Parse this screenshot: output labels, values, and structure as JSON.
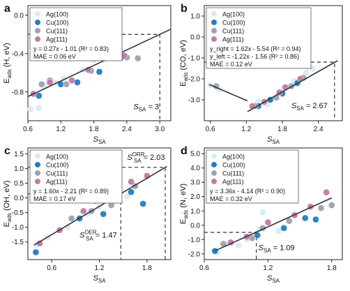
{
  "colors": {
    "Ag(100)": "#d6ecf7",
    "Cu(100)": "#1f7fc4",
    "Cu(111)": "#9aa3ad",
    "Ag(111)": "#c27aa6"
  },
  "chart_data": [
    {
      "type": "scatter",
      "letter": "a",
      "ylabel": "E",
      "ylabel_sub": "ads",
      "ylabel_rest": " (H, eV)",
      "xlabel": "S",
      "xlabel_sub": "SA",
      "xlim": [
        0.6,
        3.2
      ],
      "ylim": [
        -1.1,
        0.1
      ],
      "xticks": [
        "0.6",
        "1.2",
        "1.8",
        "2.4",
        "3.0"
      ],
      "xtick_values": [
        0.6,
        1.2,
        1.8,
        2.4,
        3.0
      ],
      "yticks": [
        "-0.8",
        "-0.4",
        "0.0"
      ],
      "ytick_values": [
        -0.8,
        -0.4,
        0.0
      ],
      "legend": [
        "Ag(100)",
        "Cu(100)",
        "Cu(111)",
        "Ag(111)"
      ],
      "equations": [
        "y = 0.27x - 1.01 (R² = 0.83)",
        "MAE = 0.06 eV"
      ],
      "fits": [
        {
          "slope": 0.27,
          "intercept": -1.01,
          "x0": 0.6,
          "x1": 3.2
        }
      ],
      "guides": [
        {
          "x": 3.0,
          "y": -0.2
        }
      ],
      "annotations": [
        {
          "main": "S",
          "sub": "SA",
          "rest": " = 3",
          "x": 2.52,
          "y": -0.98
        }
      ],
      "series": [
        {
          "name": "Ag(100)",
          "points": [
            [
              0.65,
              -0.98
            ],
            [
              0.8,
              -0.97
            ],
            [
              0.9,
              -0.73
            ],
            [
              1.1,
              -0.7
            ],
            [
              1.25,
              -0.66
            ],
            [
              1.6,
              -0.57
            ],
            [
              1.8,
              -0.47
            ],
            [
              2.1,
              -0.3
            ],
            [
              2.25,
              -0.35
            ]
          ]
        },
        {
          "name": "Cu(100)",
          "points": [
            [
              0.8,
              -0.84
            ],
            [
              1.2,
              -0.72
            ],
            [
              1.5,
              -0.7
            ],
            [
              1.9,
              -0.59
            ],
            [
              2.3,
              -0.44
            ]
          ]
        },
        {
          "name": "Cu(111)",
          "points": [
            [
              0.85,
              -0.72
            ],
            [
              1.0,
              -0.68
            ],
            [
              1.3,
              -0.72
            ],
            [
              1.75,
              -0.58
            ],
            [
              2.05,
              -0.42
            ],
            [
              2.4,
              -0.44
            ],
            [
              2.6,
              -0.45
            ]
          ]
        },
        {
          "name": "Ag(111)",
          "points": [
            [
              0.7,
              -0.82
            ],
            [
              1.0,
              -0.7
            ],
            [
              1.4,
              -0.68
            ],
            [
              1.7,
              -0.57
            ],
            [
              2.0,
              -0.45
            ],
            [
              2.2,
              -0.38
            ],
            [
              2.35,
              -0.42
            ]
          ]
        }
      ]
    },
    {
      "type": "scatter",
      "letter": "b",
      "ylabel": "E",
      "ylabel_sub": "ads",
      "ylabel_rest": " (CO, eV)",
      "xlabel": "S",
      "xlabel_sub": "SA",
      "xlim": [
        0.5,
        2.8
      ],
      "ylim": [
        -4.0,
        1.5
      ],
      "xticks": [
        "0.6",
        "1.2",
        "1.8",
        "2.4"
      ],
      "xtick_values": [
        0.6,
        1.2,
        1.8,
        2.4
      ],
      "yticks": [
        "-3.0",
        "-2.0",
        "-1.0",
        "0.0",
        "1.0"
      ],
      "ytick_values": [
        -3.0,
        -2.0,
        -1.0,
        0.0,
        1.0
      ],
      "legend": [
        "Ag(100)",
        "Cu(100)",
        "Cu(111)",
        "Ag(111)"
      ],
      "equations": [
        "y_right = 1.62x - 5.54 (R² = 0.94)",
        "y_left = -1.22x - 1.56 (R² = 0.86)",
        "MAE = 0.12 eV"
      ],
      "fits": [
        {
          "slope": -1.22,
          "intercept": -1.56,
          "x0": 0.58,
          "x1": 1.22
        },
        {
          "slope": 1.62,
          "intercept": -5.54,
          "x0": 1.22,
          "x1": 2.72
        }
      ],
      "guides": [
        {
          "x": 2.67,
          "y": -1.2
        }
      ],
      "annotations": [
        {
          "main": "S",
          "sub": "SA",
          "rest": " = 2.67",
          "x": 1.95,
          "y": -3.4
        }
      ],
      "series": [
        {
          "name": "Ag(100)",
          "points": [
            [
              0.6,
              -2.3
            ],
            [
              0.75,
              -2.5
            ],
            [
              1.4,
              -3.1
            ],
            [
              1.55,
              -3.2
            ],
            [
              1.8,
              -2.6
            ],
            [
              2.0,
              -2.1
            ],
            [
              2.2,
              -1.7
            ],
            [
              2.3,
              -1.5
            ]
          ]
        },
        {
          "name": "Cu(100)",
          "points": [
            [
              1.4,
              -3.3
            ],
            [
              1.6,
              -3.0
            ],
            [
              1.8,
              -2.7
            ],
            [
              2.05,
              -2.2
            ]
          ]
        },
        {
          "name": "Cu(111)",
          "points": [
            [
              0.7,
              -2.35
            ],
            [
              1.35,
              -3.3
            ],
            [
              1.7,
              -2.9
            ],
            [
              1.95,
              -2.35
            ],
            [
              2.15,
              -1.95
            ]
          ]
        },
        {
          "name": "Ag(111)",
          "points": [
            [
              1.3,
              -3.3
            ],
            [
              1.5,
              -3.1
            ],
            [
              1.75,
              -2.65
            ],
            [
              1.85,
              -2.4
            ],
            [
              2.1,
              -2.0
            ]
          ]
        }
      ]
    },
    {
      "type": "scatter",
      "letter": "c",
      "ylabel": "E",
      "ylabel_sub": "ads",
      "ylabel_rest": " (OH, eV)",
      "xlabel": "S",
      "xlabel_sub": "SA",
      "xlim": [
        0.3,
        2.1
      ],
      "ylim": [
        -2.1,
        1.7
      ],
      "xticks": [
        "0.6",
        "1.2",
        "1.8"
      ],
      "xtick_values": [
        0.6,
        1.2,
        1.8
      ],
      "yticks": [
        "-1.5",
        "-1.0",
        "-0.5",
        "0.0",
        "0.5",
        "1.0",
        "1.5"
      ],
      "ytick_values": [
        -1.5,
        -1.0,
        -0.5,
        0.0,
        0.5,
        1.0,
        1.5
      ],
      "legend": [
        "Ag(100)",
        "Cu(100)",
        "Cu(111)",
        "Ag(111)"
      ],
      "equations": [
        "y = 1.60x - 2.21 (R² = 0.89)",
        "MAE = 0.17 eV"
      ],
      "fits": [
        {
          "slope": 1.6,
          "intercept": -2.21,
          "x0": 0.38,
          "x1": 2.05
        }
      ],
      "guides": [
        {
          "x": 2.03,
          "y": 1.04
        },
        {
          "x": 1.47,
          "y": 0.14
        }
      ],
      "annotations": [
        {
          "main": "S",
          "sub": "SA",
          "sup": "ORR",
          "rest": " = 2.03",
          "x": 1.55,
          "y": 1.3
        },
        {
          "main": "S",
          "sub": "SA",
          "sup": "OER",
          "rest": " = 1.47",
          "x": 0.95,
          "y": -1.35
        }
      ],
      "series": [
        {
          "name": "Ag(100)",
          "points": [
            [
              0.4,
              -1.6
            ],
            [
              0.55,
              -1.35
            ],
            [
              0.8,
              -1.0
            ],
            [
              1.05,
              -0.55
            ],
            [
              1.2,
              -0.3
            ],
            [
              1.4,
              0.0
            ],
            [
              1.55,
              0.05
            ]
          ]
        },
        {
          "name": "Cu(100)",
          "points": [
            [
              0.4,
              -1.85
            ],
            [
              0.95,
              -0.7
            ],
            [
              1.25,
              -0.55
            ],
            [
              1.6,
              0.2
            ],
            [
              1.75,
              -0.2
            ]
          ]
        },
        {
          "name": "Cu(111)",
          "points": [
            [
              0.85,
              -0.7
            ],
            [
              1.1,
              -0.45
            ],
            [
              1.35,
              -0.25
            ],
            [
              1.65,
              0.4
            ]
          ]
        },
        {
          "name": "Ag(111)",
          "points": [
            [
              0.45,
              -1.55
            ],
            [
              0.7,
              -1.1
            ],
            [
              1.0,
              -0.45
            ],
            [
              1.15,
              -0.1
            ],
            [
              1.45,
              0.45
            ],
            [
              1.6,
              0.55
            ],
            [
              1.8,
              0.75
            ]
          ]
        }
      ]
    },
    {
      "type": "scatter",
      "letter": "d",
      "ylabel": "E",
      "ylabel_sub": "ads",
      "ylabel_rest": " (N, eV)",
      "xlabel": "S",
      "xlabel_sub": "SA",
      "xlim": [
        0.6,
        1.9
      ],
      "ylim": [
        -2.4,
        5.4
      ],
      "xticks": [
        "0.6",
        "1.2",
        "1.8"
      ],
      "xtick_values": [
        0.6,
        1.2,
        1.8
      ],
      "yticks": [
        "-2.0",
        "-1.0",
        "0.0",
        "1.0",
        "2.0",
        "3.0",
        "4.0",
        "5.0"
      ],
      "ytick_values": [
        -2.0,
        -1.0,
        0.0,
        1.0,
        2.0,
        3.0,
        4.0,
        5.0
      ],
      "legend": [
        "Ag(100)",
        "Cu(100)",
        "Cu(111)",
        "Ag(111)"
      ],
      "equations": [
        "y = 3.36x - 4.14 (R² = 0.90)",
        "MAE = 0.32 eV"
      ],
      "fits": [
        {
          "slope": 3.36,
          "intercept": -4.14,
          "x0": 0.7,
          "x1": 1.8
        }
      ],
      "guides": [
        {
          "x": 1.09,
          "y": -0.5
        }
      ],
      "annotations": [
        {
          "main": "S",
          "sub": "SA",
          "rest": " = 1.09",
          "x": 1.11,
          "y": -1.75
        }
      ],
      "series": [
        {
          "name": "Ag(100)",
          "points": [
            [
              0.72,
              -1.9
            ],
            [
              0.82,
              -1.3
            ],
            [
              0.92,
              -1.4
            ],
            [
              1.0,
              -1.0
            ],
            [
              1.12,
              -0.3
            ],
            [
              1.15,
              0.9
            ],
            [
              1.3,
              -0.4
            ]
          ]
        },
        {
          "name": "Cu(100)",
          "points": [
            [
              0.7,
              -1.8
            ],
            [
              1.1,
              -0.7
            ],
            [
              1.35,
              -0.2
            ],
            [
              1.55,
              0.5
            ],
            [
              1.65,
              0.4
            ]
          ]
        },
        {
          "name": "Cu(111)",
          "points": [
            [
              0.78,
              -1.3
            ],
            [
              1.05,
              -0.9
            ],
            [
              1.15,
              -0.2
            ],
            [
              1.4,
              0.3
            ],
            [
              1.7,
              1.2
            ],
            [
              1.8,
              1.4
            ]
          ]
        },
        {
          "name": "Ag(111)",
          "points": [
            [
              0.85,
              -1.2
            ],
            [
              1.0,
              -0.8
            ],
            [
              1.2,
              0.2
            ],
            [
              1.45,
              0.7
            ],
            [
              1.6,
              1.3
            ],
            [
              1.75,
              2.3
            ]
          ]
        }
      ]
    }
  ]
}
